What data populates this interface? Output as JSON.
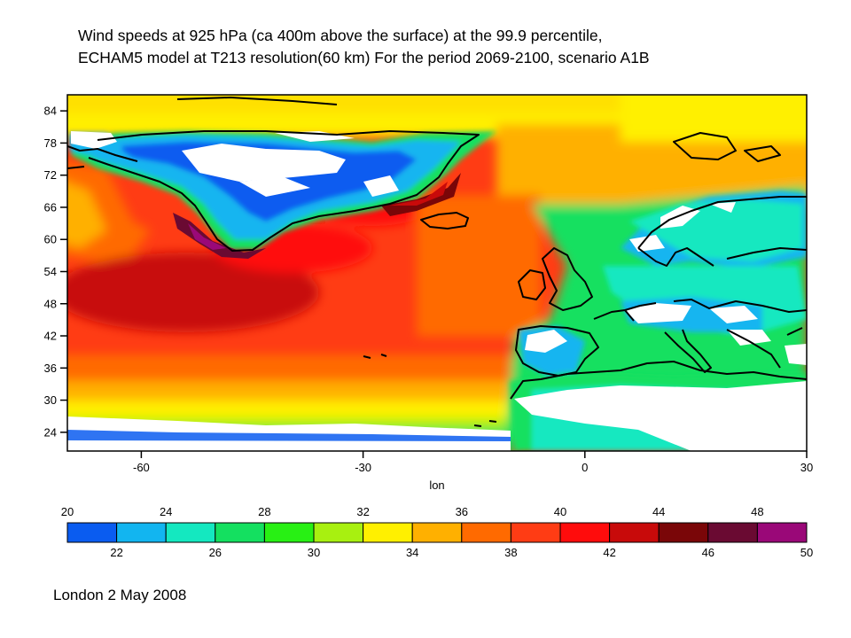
{
  "title": {
    "line1": "Wind speeds at 925 hPa (ca 400m above  the surface) at the 99.9 percentile,",
    "line2": "ECHAM5 model at T213 resolution(60 km) For  the period 2069-2100, scenario A1B"
  },
  "map": {
    "xlabel": "lon",
    "x_ticks": [
      -60,
      -30,
      0,
      30
    ],
    "y_ticks": [
      84,
      78,
      72,
      66,
      60,
      54,
      48,
      42,
      36,
      30,
      24
    ],
    "lon_range": [
      -70,
      30
    ],
    "lat_range": [
      20.5,
      87
    ]
  },
  "colorbar": {
    "upper_labels": [
      "20",
      "24",
      "28",
      "32",
      "36",
      "40",
      "44",
      "48"
    ],
    "lower_labels": [
      "22",
      "26",
      "30",
      "34",
      "38",
      "42",
      "46",
      "50"
    ],
    "colors": [
      "#0a5cf0",
      "#12b5f0",
      "#14e8c0",
      "#14e060",
      "#28f014",
      "#a8f010",
      "#fff000",
      "#ffb000",
      "#ff6a00",
      "#ff3c14",
      "#ff0c0c",
      "#c80a0a",
      "#7a0608",
      "#6a0a32",
      "#9a0878"
    ]
  },
  "footer": "London 2 May 2008"
}
